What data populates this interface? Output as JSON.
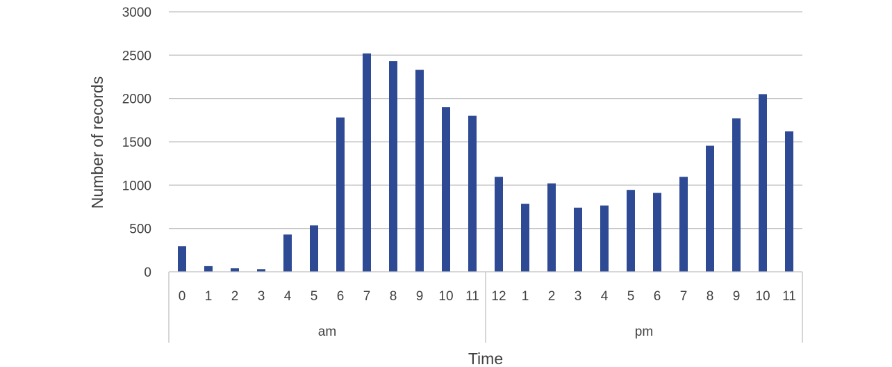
{
  "chart_data": {
    "type": "bar",
    "xlabel": "Time",
    "ylabel": "Number of records",
    "ylim": [
      0,
      3000
    ],
    "yticks": [
      0,
      500,
      1000,
      1500,
      2000,
      2500,
      3000
    ],
    "grid": true,
    "legend": "none",
    "bar_color": "#2e4a94",
    "groups": [
      {
        "label": "am",
        "categories": [
          "0",
          "1",
          "2",
          "3",
          "4",
          "5",
          "6",
          "7",
          "8",
          "9",
          "10",
          "11"
        ]
      },
      {
        "label": "pm",
        "categories": [
          "12",
          "1",
          "2",
          "3",
          "4",
          "5",
          "6",
          "7",
          "8",
          "9",
          "10",
          "11"
        ]
      }
    ],
    "values": [
      295,
      65,
      40,
      30,
      430,
      535,
      1780,
      2520,
      2430,
      2330,
      1900,
      1800,
      1095,
      785,
      1020,
      740,
      765,
      945,
      910,
      1095,
      1455,
      1770,
      2050,
      1620
    ]
  }
}
